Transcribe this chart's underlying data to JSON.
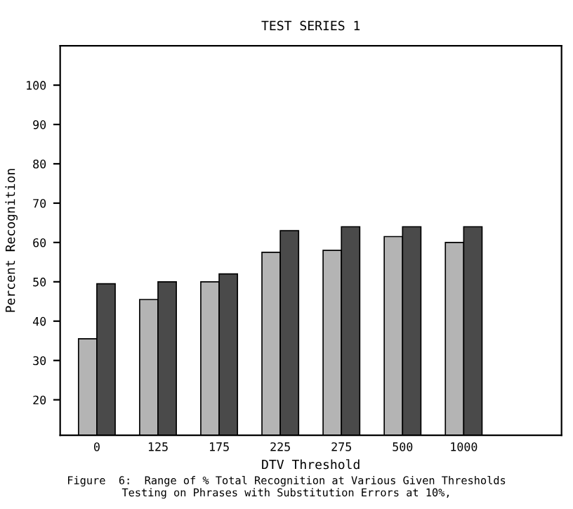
{
  "chart_data": {
    "type": "bar",
    "title": "TEST SERIES 1",
    "xlabel": "DTV Threshold",
    "ylabel": "Percent Recognition",
    "categories": [
      "0",
      "125",
      "175",
      "225",
      "275",
      "500",
      "1000",
      null
    ],
    "series": [
      {
        "color": "#b4b4b4",
        "values": [
          35.5,
          45.5,
          50,
          57.5,
          58,
          61.5,
          60,
          null
        ]
      },
      {
        "color": "#4a4a4a",
        "values": [
          49.5,
          50,
          52,
          63,
          64,
          64,
          64,
          null
        ]
      }
    ],
    "ylim": [
      11,
      110
    ],
    "yticks": [
      20,
      30,
      40,
      50,
      60,
      70,
      80,
      90,
      100
    ],
    "grid": false,
    "legend": false,
    "annotations": [
      "Figure  6:  Range of % Total Recognition at Various Given Thresholds\nTesting on Phrases with Substitution Errors at 10%,"
    ]
  }
}
